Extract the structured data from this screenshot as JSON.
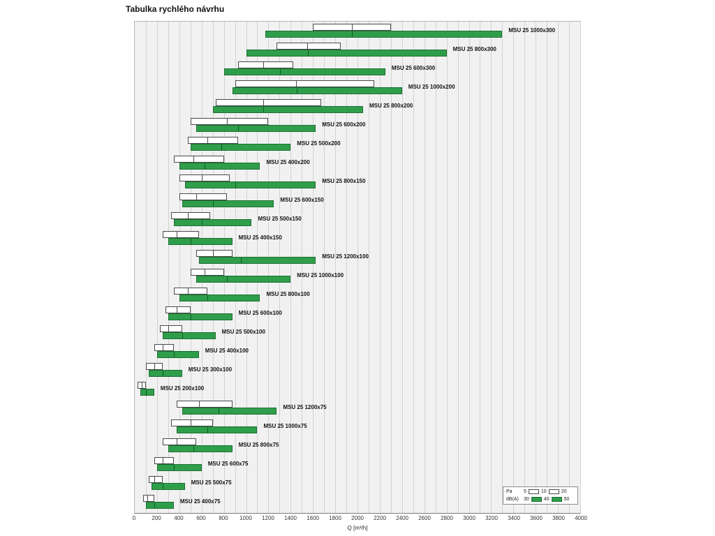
{
  "title": "Tabulka rychlého návrhu",
  "legend": {
    "pa_label": "Pa",
    "pa_ticks": [
      "5",
      "10",
      "20"
    ],
    "dba_label": "dB(A)",
    "dba_ticks": [
      "30",
      "40",
      "50"
    ]
  },
  "chart_data": {
    "type": "bar",
    "orientation": "horizontal",
    "title": "Tabulka rychlého návrhu",
    "xlabel": "Q [m³/h]",
    "xlim": [
      0,
      4000
    ],
    "x_tick_step": 200,
    "grid_step": 100,
    "legend_position": "bottom-right inside plot",
    "grid": true,
    "colors": {
      "pa_bar": "#ffffff",
      "dba_bar": "#2f9e4b"
    },
    "pa_levels": [
      5,
      10,
      20
    ],
    "dba_levels": [
      30,
      40,
      50
    ],
    "series": [
      {
        "name": "MSU 25 1000x300",
        "pa_q": [
          1600,
          1950,
          2300
        ],
        "dba_q": [
          1175,
          1950,
          3300
        ]
      },
      {
        "name": "MSU 25 800x300",
        "pa_q": [
          1275,
          1550,
          1850
        ],
        "dba_q": [
          1000,
          1550,
          2800
        ]
      },
      {
        "name": "MSU 25 600x300",
        "pa_q": [
          925,
          1150,
          1425
        ],
        "dba_q": [
          800,
          1300,
          2250
        ]
      },
      {
        "name": "MSU 25 1000x200",
        "pa_q": [
          900,
          1450,
          2150
        ],
        "dba_q": [
          875,
          1450,
          2400
        ]
      },
      {
        "name": "MSU 25 800x200",
        "pa_q": [
          725,
          1150,
          1675
        ],
        "dba_q": [
          700,
          1150,
          2050
        ]
      },
      {
        "name": "MSU 25 600x200",
        "pa_q": [
          500,
          825,
          1200
        ],
        "dba_q": [
          550,
          925,
          1625
        ]
      },
      {
        "name": "MSU 25 500x200",
        "pa_q": [
          475,
          650,
          925
        ],
        "dba_q": [
          500,
          775,
          1400
        ]
      },
      {
        "name": "MSU 25 400x200",
        "pa_q": [
          350,
          525,
          800
        ],
        "dba_q": [
          400,
          625,
          1125
        ]
      },
      {
        "name": "MSU 25 800x150",
        "pa_q": [
          400,
          600,
          850
        ],
        "dba_q": [
          450,
          900,
          1625
        ]
      },
      {
        "name": "MSU 25 600x150",
        "pa_q": [
          400,
          550,
          825
        ],
        "dba_q": [
          425,
          700,
          1250
        ]
      },
      {
        "name": "MSU 25 500x150",
        "pa_q": [
          325,
          475,
          675
        ],
        "dba_q": [
          350,
          600,
          1050
        ]
      },
      {
        "name": "MSU 25 400x150",
        "pa_q": [
          250,
          375,
          575
        ],
        "dba_q": [
          300,
          500,
          875
        ]
      },
      {
        "name": "MSU 25 1200x100",
        "pa_q": [
          550,
          700,
          875
        ],
        "dba_q": [
          575,
          950,
          1625
        ]
      },
      {
        "name": "MSU 25 1000x100",
        "pa_q": [
          500,
          625,
          800
        ],
        "dba_q": [
          550,
          825,
          1400
        ]
      },
      {
        "name": "MSU 25 800x100",
        "pa_q": [
          350,
          475,
          650
        ],
        "dba_q": [
          400,
          650,
          1125
        ]
      },
      {
        "name": "MSU 25 600x100",
        "pa_q": [
          275,
          375,
          500
        ],
        "dba_q": [
          300,
          500,
          875
        ]
      },
      {
        "name": "MSU 25 500x100",
        "pa_q": [
          225,
          300,
          425
        ],
        "dba_q": [
          250,
          425,
          725
        ]
      },
      {
        "name": "MSU 25 400x100",
        "pa_q": [
          175,
          250,
          350
        ],
        "dba_q": [
          200,
          350,
          575
        ]
      },
      {
        "name": "MSU 25 300x100",
        "pa_q": [
          100,
          175,
          250
        ],
        "dba_q": [
          125,
          250,
          425
        ]
      },
      {
        "name": "MSU 25 200x100",
        "pa_q": [
          25,
          60,
          100
        ],
        "dba_q": [
          50,
          100,
          175
        ]
      },
      {
        "name": "MSU 25 1200x75",
        "pa_q": [
          375,
          575,
          875
        ],
        "dba_q": [
          425,
          750,
          1275
        ]
      },
      {
        "name": "MSU 25 1000x75",
        "pa_q": [
          325,
          500,
          700
        ],
        "dba_q": [
          375,
          650,
          1100
        ]
      },
      {
        "name": "MSU 25 800x75",
        "pa_q": [
          250,
          375,
          550
        ],
        "dba_q": [
          300,
          525,
          875
        ]
      },
      {
        "name": "MSU 25 600x75",
        "pa_q": [
          175,
          250,
          350
        ],
        "dba_q": [
          200,
          350,
          600
        ]
      },
      {
        "name": "MSU 25 500x75",
        "pa_q": [
          125,
          175,
          250
        ],
        "dba_q": [
          150,
          250,
          450
        ]
      },
      {
        "name": "MSU 25 400x75",
        "pa_q": [
          75,
          110,
          175
        ],
        "dba_q": [
          100,
          175,
          350
        ]
      }
    ]
  }
}
